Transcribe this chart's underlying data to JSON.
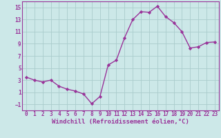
{
  "x": [
    0,
    1,
    2,
    3,
    4,
    5,
    6,
    7,
    8,
    9,
    10,
    11,
    12,
    13,
    14,
    15,
    16,
    17,
    18,
    19,
    20,
    21,
    22,
    23
  ],
  "y": [
    3.5,
    3.0,
    2.7,
    3.0,
    2.0,
    1.5,
    1.2,
    0.7,
    -0.9,
    0.3,
    5.5,
    6.3,
    10.0,
    13.0,
    14.3,
    14.2,
    15.2,
    13.5,
    12.5,
    11.0,
    8.3,
    8.5,
    9.2,
    9.3
  ],
  "line_color": "#993399",
  "marker": "D",
  "markersize": 2.2,
  "bg_color": "#cce8e8",
  "grid_color": "#aacccc",
  "xlabel": "Windchill (Refroidissement éolien,°C)",
  "xlabel_fontsize": 6.5,
  "tick_fontsize": 5.5,
  "ylim": [
    -2,
    16
  ],
  "yticks": [
    -1,
    1,
    3,
    5,
    7,
    9,
    11,
    13,
    15
  ],
  "xticks": [
    0,
    1,
    2,
    3,
    4,
    5,
    6,
    7,
    8,
    9,
    10,
    11,
    12,
    13,
    14,
    15,
    16,
    17,
    18,
    19,
    20,
    21,
    22,
    23
  ],
  "linewidth": 1.0
}
